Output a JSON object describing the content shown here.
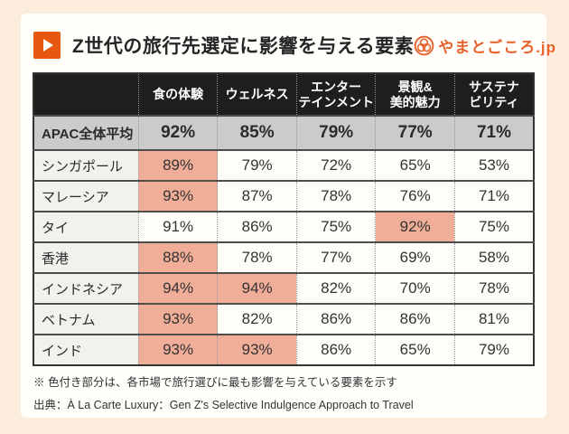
{
  "colors": {
    "accent_orange": "#e8570e",
    "logo_orange": "#e8622d",
    "highlight_salmon": "#f0ad97",
    "header_black": "#1e1e1d",
    "average_gray": "#cbcbcb",
    "page_peach": "#fcecdd",
    "card_white": "#fffefb"
  },
  "header": {
    "title": "Z世代の旅行先選定に影響を与える要素",
    "logo_text": "やまとごころ.jp"
  },
  "table": {
    "columns": [
      "食の体験",
      "ウェルネス",
      "エンター\nテインメント",
      "景観&\n美的魅力",
      "サステナ\nビリティ"
    ],
    "rows": [
      {
        "label": "APAC全体平均",
        "values": [
          "92%",
          "85%",
          "79%",
          "77%",
          "71%"
        ],
        "highlights": [
          false,
          false,
          false,
          false,
          false
        ],
        "is_average": true
      },
      {
        "label": "シンガポール",
        "values": [
          "89%",
          "79%",
          "72%",
          "65%",
          "53%"
        ],
        "highlights": [
          true,
          false,
          false,
          false,
          false
        ],
        "is_average": false
      },
      {
        "label": "マレーシア",
        "values": [
          "93%",
          "87%",
          "78%",
          "76%",
          "71%"
        ],
        "highlights": [
          true,
          false,
          false,
          false,
          false
        ],
        "is_average": false
      },
      {
        "label": "タイ",
        "values": [
          "91%",
          "86%",
          "75%",
          "92%",
          "75%"
        ],
        "highlights": [
          false,
          false,
          false,
          true,
          false
        ],
        "is_average": false
      },
      {
        "label": "香港",
        "values": [
          "88%",
          "78%",
          "77%",
          "69%",
          "58%"
        ],
        "highlights": [
          true,
          false,
          false,
          false,
          false
        ],
        "is_average": false
      },
      {
        "label": "インドネシア",
        "values": [
          "94%",
          "94%",
          "82%",
          "70%",
          "78%"
        ],
        "highlights": [
          true,
          true,
          false,
          false,
          false
        ],
        "is_average": false
      },
      {
        "label": "ベトナム",
        "values": [
          "93%",
          "82%",
          "86%",
          "86%",
          "81%"
        ],
        "highlights": [
          true,
          false,
          false,
          false,
          false
        ],
        "is_average": false
      },
      {
        "label": "インド",
        "values": [
          "93%",
          "93%",
          "86%",
          "65%",
          "79%"
        ],
        "highlights": [
          true,
          true,
          false,
          false,
          false
        ],
        "is_average": false
      }
    ]
  },
  "footnotes": {
    "note": "※ 色付き部分は、各市場で旅行選びに最も影響を与えている要素を示す",
    "source": "出典：À La Carte Luxury：Gen Z's Selective Indulgence Approach to Travel"
  },
  "chart_data": {
    "type": "table",
    "title": "Z世代の旅行先選定に影響を与える要素",
    "columns": [
      "食の体験",
      "ウェルネス",
      "エンターテインメント",
      "景観&美的魅力",
      "サステナビリティ"
    ],
    "row_labels": [
      "APAC全体平均",
      "シンガポール",
      "マレーシア",
      "タイ",
      "香港",
      "インドネシア",
      "ベトナム",
      "インド"
    ],
    "values_percent": [
      [
        92,
        85,
        79,
        77,
        71
      ],
      [
        89,
        79,
        72,
        65,
        53
      ],
      [
        93,
        87,
        78,
        76,
        71
      ],
      [
        91,
        86,
        75,
        92,
        75
      ],
      [
        88,
        78,
        77,
        69,
        58
      ],
      [
        94,
        94,
        82,
        70,
        78
      ],
      [
        93,
        82,
        86,
        86,
        81
      ],
      [
        93,
        93,
        86,
        65,
        79
      ]
    ],
    "highlighted_cells_meaning": "各市場で旅行選びに最も影響を与えている要素",
    "highlighted_cells": [
      [
        "シンガポール",
        "食の体験"
      ],
      [
        "マレーシア",
        "食の体験"
      ],
      [
        "タイ",
        "景観&美的魅力"
      ],
      [
        "香港",
        "食の体験"
      ],
      [
        "インドネシア",
        "食の体験"
      ],
      [
        "インドネシア",
        "ウェルネス"
      ],
      [
        "ベトナム",
        "食の体験"
      ],
      [
        "インド",
        "食の体験"
      ],
      [
        "インド",
        "ウェルネス"
      ]
    ]
  }
}
